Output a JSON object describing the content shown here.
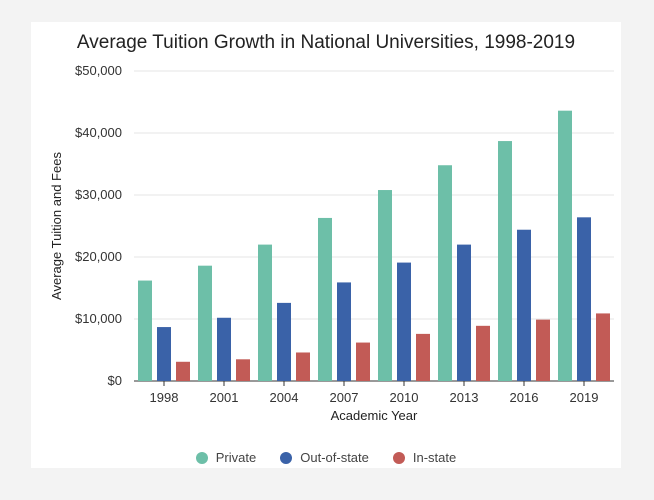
{
  "chart_data": {
    "type": "bar",
    "title": "Average Tuition Growth in National Universities, 1998-2019",
    "xlabel": "Academic Year",
    "ylabel": "Average Tuition and Fees",
    "categories": [
      "1998",
      "2001",
      "2004",
      "2007",
      "2010",
      "2013",
      "2016",
      "2019"
    ],
    "ylim": [
      0,
      50000
    ],
    "yticks": [
      0,
      10000,
      20000,
      30000,
      40000,
      50000
    ],
    "ytick_labels": [
      "$0",
      "$10,000",
      "$20,000",
      "$30,000",
      "$40,000",
      "$50,000"
    ],
    "grid": true,
    "legend_position": "bottom",
    "series": [
      {
        "name": "Private",
        "color": "#6dbfa8",
        "values": [
          16200,
          18600,
          22000,
          26300,
          30800,
          34800,
          38700,
          43600
        ]
      },
      {
        "name": "Out-of-state",
        "color": "#3a62a8",
        "values": [
          8700,
          10200,
          12600,
          15900,
          19100,
          22000,
          24400,
          26400
        ]
      },
      {
        "name": "In-state",
        "color": "#c25b56",
        "values": [
          3100,
          3500,
          4600,
          6200,
          7600,
          8900,
          9900,
          10900
        ]
      }
    ]
  }
}
